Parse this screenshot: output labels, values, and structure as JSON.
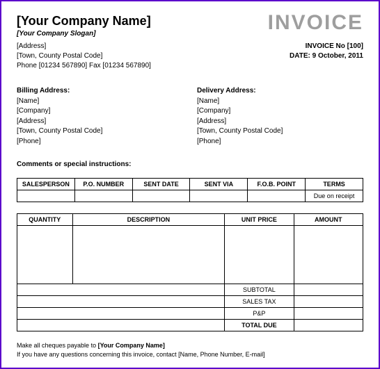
{
  "header": {
    "company_name": "[Your Company Name]",
    "slogan": "[Your Company Slogan]",
    "invoice_title": "INVOICE",
    "address": "[Address]",
    "town_postal": "[Town, County Postal Code]",
    "phone_fax": "Phone [01234 567890] Fax [01234 567890]",
    "invoice_no_label": "INVOICE No [100]",
    "date_label": "DATE:  9 October, 2011"
  },
  "billing": {
    "title": "Billing Address:",
    "name": "[Name]",
    "company": "[Company]",
    "address": "[Address]",
    "town_postal": "[Town, County Postal Code]",
    "phone": "[Phone]"
  },
  "delivery": {
    "title": "Delivery Address:",
    "name": "[Name]",
    "company": "[Company]",
    "address": "[Address]",
    "town_postal": "[Town, County Postal Code]",
    "phone": "[Phone]"
  },
  "comments_label": "Comments or special instructions:",
  "meta_table": {
    "headers": {
      "salesperson": "SALESPERSON",
      "po": "P.O. NUMBER",
      "sent_date": "SENT DATE",
      "sent_via": "SENT VIA",
      "fob": "F.O.B. POINT",
      "terms": "TERMS"
    },
    "row": {
      "salesperson": "",
      "po": "",
      "sent_date": "",
      "sent_via": "",
      "fob": "",
      "terms": "Due on receipt"
    }
  },
  "items_table": {
    "headers": {
      "quantity": "QUANTITY",
      "description": "DESCRIPTION",
      "unit_price": "UNIT PRICE",
      "amount": "AMOUNT"
    }
  },
  "totals": {
    "subtotal": "SUBTOTAL",
    "sales_tax": "SALES TAX",
    "pp": "P&P",
    "total_due": "TOTAL DUE"
  },
  "footer": {
    "line1_prefix": "Make all cheques payable to ",
    "line1_bold": "[Your Company Name]",
    "line2": "If you have any questions concerning this invoice, contact [Name, Phone Number, E-mail]"
  }
}
